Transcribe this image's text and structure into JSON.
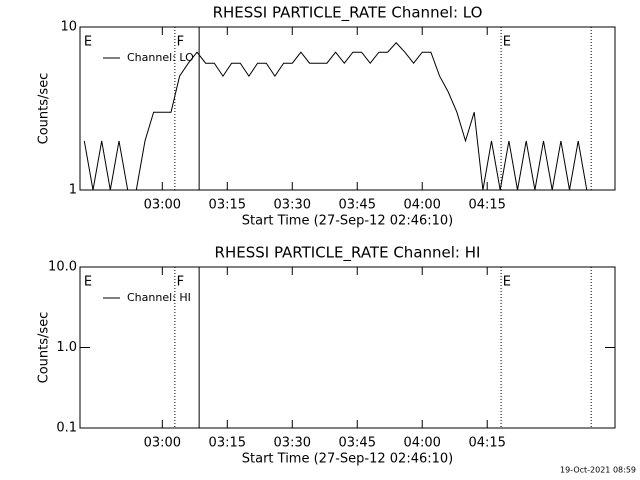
{
  "chart_data": [
    {
      "type": "line",
      "title": "RHESSI PARTICLE_RATE Channel: LO",
      "x_label": "Start Time (27-Sep-12 02:46:10)",
      "y_label": "Counts/sec",
      "log_y": true,
      "legend": "upper left",
      "x": [
        162,
        164,
        166,
        168,
        170,
        172,
        174,
        176,
        178,
        180,
        182,
        184,
        186,
        188,
        190,
        192,
        194,
        196,
        198,
        200,
        202,
        204,
        206,
        208,
        210,
        212,
        214,
        216,
        218,
        220,
        222,
        224,
        226,
        228,
        230,
        232,
        234,
        236,
        238,
        240,
        242,
        244,
        246,
        248,
        250,
        252,
        254,
        256,
        258,
        260,
        262,
        264,
        266,
        268,
        270,
        272,
        274,
        276,
        278
      ],
      "series": [
        {
          "name": "Channel: LO",
          "color": "#000000",
          "values": [
            2,
            1,
            2,
            1,
            2,
            1,
            1,
            2,
            3,
            3,
            3,
            5,
            6,
            7,
            6,
            6,
            5,
            6,
            6,
            5,
            6,
            6,
            5,
            6,
            6,
            7,
            6,
            6,
            6,
            7,
            6,
            7,
            7,
            6,
            7,
            7,
            8,
            7,
            6,
            7,
            7,
            5,
            4,
            3,
            2,
            3,
            1,
            2,
            1,
            2,
            1,
            2,
            1,
            2,
            1,
            2,
            1,
            2,
            1
          ]
        }
      ],
      "xlim": [
        161,
        284.5
      ],
      "xticks": [
        {
          "value": 180,
          "label": "03:00"
        },
        {
          "value": 195,
          "label": "03:15"
        },
        {
          "value": 210,
          "label": "03:30"
        },
        {
          "value": 225,
          "label": "03:45"
        },
        {
          "value": 240,
          "label": "04:00"
        },
        {
          "value": 255,
          "label": "04:15"
        }
      ],
      "ylim": [
        1,
        10
      ],
      "yticks": [
        1,
        10
      ],
      "vlines": [
        {
          "x": 182.9,
          "style": "dotted"
        },
        {
          "x": 188.5,
          "style": "solid"
        },
        {
          "x": 258.2,
          "style": "dotted"
        },
        {
          "x": 279,
          "style": "dotted"
        }
      ],
      "flags": [
        {
          "x": 161.9,
          "label": "E"
        },
        {
          "x": 183.3,
          "label": "F"
        },
        {
          "x": 258.6,
          "label": "E"
        }
      ]
    },
    {
      "type": "line",
      "title": "RHESSI PARTICLE_RATE Channel: HI",
      "x_label": "Start Time (27-Sep-12 02:46:10)",
      "y_label": "Counts/sec",
      "log_y": true,
      "legend": "upper left",
      "x": [],
      "series": [
        {
          "name": "Channel: HI",
          "color": "#000000",
          "values": []
        }
      ],
      "xlim": [
        161,
        284.5
      ],
      "xticks": [
        {
          "value": 180,
          "label": "03:00"
        },
        {
          "value": 195,
          "label": "03:15"
        },
        {
          "value": 210,
          "label": "03:30"
        },
        {
          "value": 225,
          "label": "03:45"
        },
        {
          "value": 240,
          "label": "04:00"
        },
        {
          "value": 255,
          "label": "04:15"
        }
      ],
      "ylim": [
        0.1,
        10
      ],
      "yticks": [
        {
          "value": 0.1,
          "label": "0.1"
        },
        {
          "value": 1,
          "label": "1.0"
        },
        {
          "value": 10,
          "label": "10.0"
        }
      ],
      "vlines": [
        {
          "x": 182.9,
          "style": "dotted"
        },
        {
          "x": 188.5,
          "style": "solid"
        },
        {
          "x": 258.2,
          "style": "dotted"
        },
        {
          "x": 279,
          "style": "dotted"
        }
      ],
      "flags": [
        {
          "x": 161.9,
          "label": "E"
        },
        {
          "x": 183.3,
          "label": "F"
        },
        {
          "x": 258.6,
          "label": "E"
        }
      ]
    }
  ],
  "footer": "19-Oct-2021 08:59"
}
